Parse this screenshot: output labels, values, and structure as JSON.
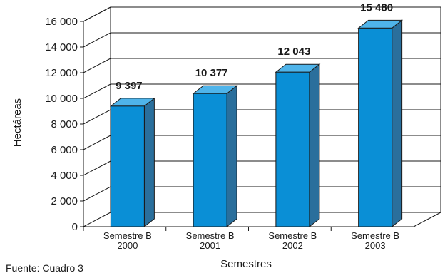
{
  "chart_data": {
    "type": "bar",
    "categories": [
      [
        "Semestre B",
        "2000"
      ],
      [
        "Semestre B",
        "2001"
      ],
      [
        "Semestre B",
        "2002"
      ],
      [
        "Semestre B",
        "2003"
      ]
    ],
    "values": [
      9397,
      10377,
      12043,
      15480
    ],
    "value_labels": [
      "9 397",
      "10 377",
      "12 043",
      "15 480"
    ],
    "ylim": [
      0,
      16000
    ],
    "yticks": [
      0,
      2000,
      4000,
      6000,
      8000,
      10000,
      12000,
      14000,
      16000
    ],
    "ytick_labels": [
      "0",
      "2 000",
      "4 000",
      "6 000",
      "8 000",
      "10 000",
      "12 000",
      "14 000",
      "16 000"
    ],
    "xlabel": "Semestres",
    "ylabel": "Hectáreas",
    "grid": true,
    "style": "3d",
    "colors": {
      "front": "#0a8fd6",
      "side": "#2a6f9c",
      "top": "#4fb4ea",
      "outline": "#1a1a1a"
    }
  },
  "source_note": "Fuente: Cuadro 3"
}
